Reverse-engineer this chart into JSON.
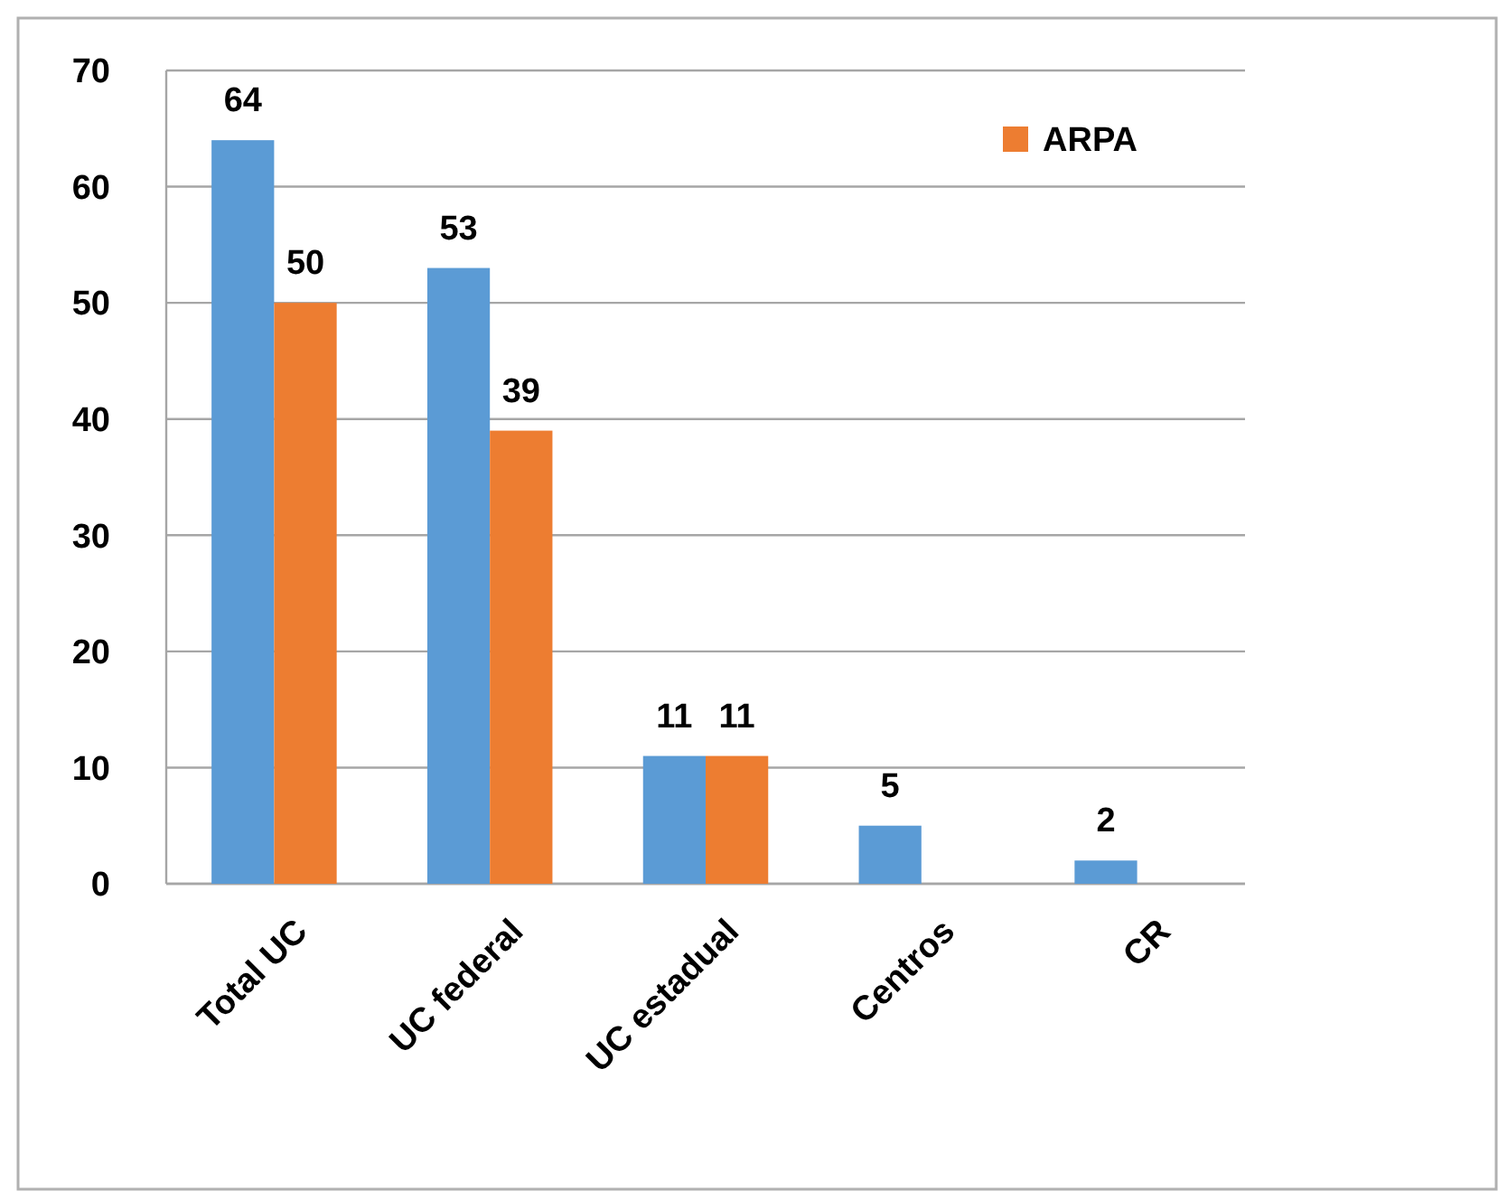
{
  "chart_data": {
    "type": "bar",
    "categories": [
      "Total UC",
      "UC federal",
      "UC estadual",
      "Centros",
      "CR"
    ],
    "series": [
      {
        "color": "#5b9bd5",
        "values": [
          64,
          53,
          11,
          5,
          2
        ]
      },
      {
        "name": "ARPA",
        "color": "#ed7d31",
        "values": [
          50,
          39,
          11,
          null,
          null
        ]
      }
    ],
    "ylim": [
      0,
      70
    ],
    "yticks": [
      0,
      10,
      20,
      30,
      40,
      50,
      60,
      70
    ],
    "grid": "y",
    "legend": "top right",
    "data_labels": true
  }
}
